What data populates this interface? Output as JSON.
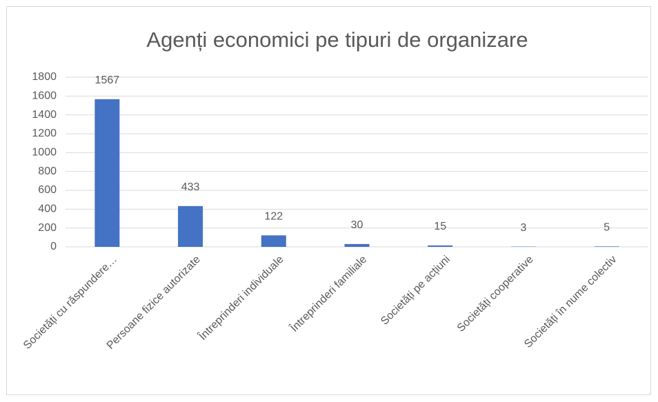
{
  "chart_data": {
    "type": "bar",
    "title": "Agenți  economici pe tipuri de organizare",
    "categories": [
      "Societăți cu răspundere…",
      "Persoane fizice autorizate",
      "Întreprinderi individuale",
      "Întreprinderi familiale",
      "Societăți pe acțiuni",
      "Societăți cooperative",
      "Societăți în nume colectiv"
    ],
    "values": [
      1567,
      433,
      122,
      30,
      15,
      3,
      5
    ],
    "color": "#4472c4",
    "ylim": [
      0,
      1800
    ],
    "yticks": [
      0,
      200,
      400,
      600,
      800,
      1000,
      1200,
      1400,
      1600,
      1800
    ],
    "grid": true
  }
}
